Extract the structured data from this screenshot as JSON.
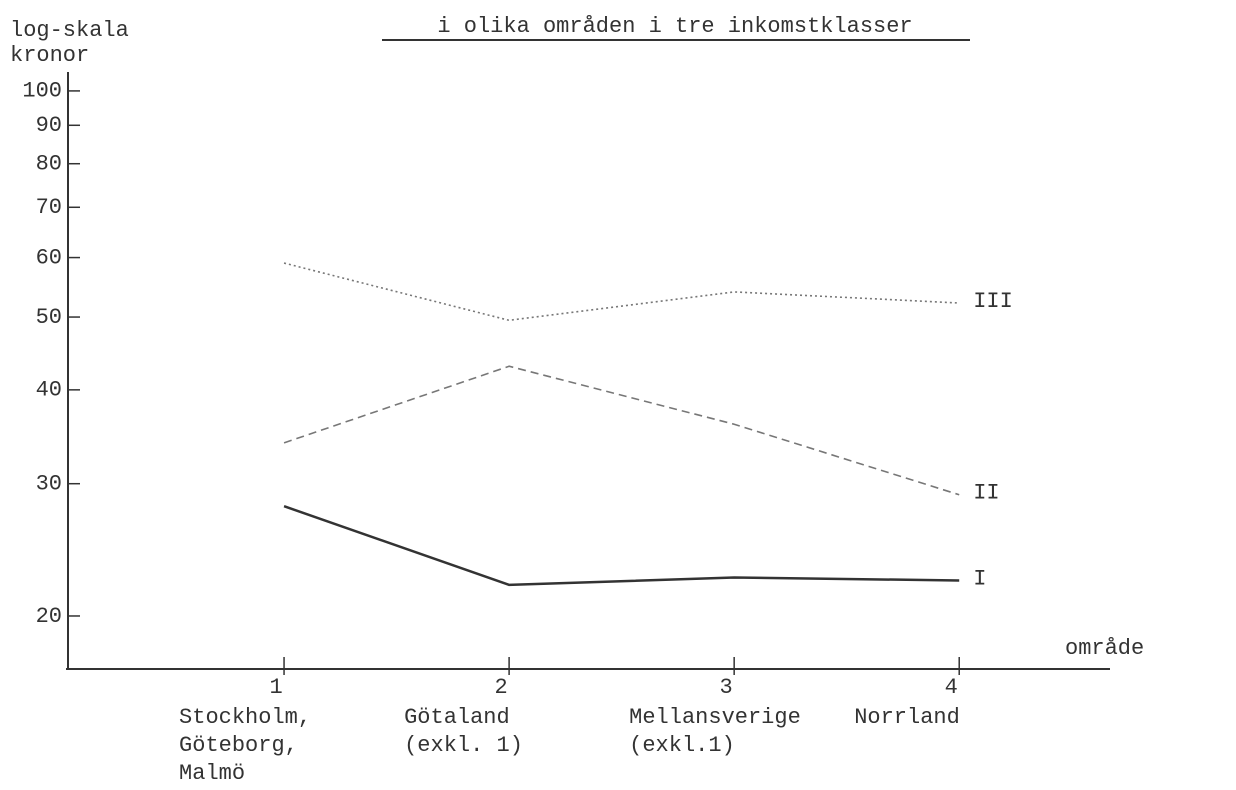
{
  "chart_data": {
    "type": "line",
    "title": "i olika områden i tre inkomstklasser",
    "y_label_lines": [
      "log-skala",
      "kronor"
    ],
    "x_label": "område",
    "x": [
      1,
      2,
      3,
      4
    ],
    "xlim": [
      0.04,
      4.67
    ],
    "xticks": [
      1,
      2,
      3,
      4
    ],
    "region_labels": [
      [
        "Stockholm,",
        "Göteborg,",
        "Malmö"
      ],
      [
        "Götaland",
        "(exkl. 1)"
      ],
      [
        "Mellansverige",
        "(exkl.1)"
      ],
      [
        "Norrland"
      ]
    ],
    "ylim": [
      17,
      105
    ],
    "yticks": [
      20,
      30,
      40,
      50,
      60,
      70,
      80,
      90,
      100
    ],
    "log_y": true,
    "series": [
      {
        "name": "I",
        "color": "#333333",
        "dash": "solid",
        "values": [
          28,
          22,
          22.5,
          22.3
        ]
      },
      {
        "name": "II",
        "color": "#777777",
        "dash": "dashed",
        "values": [
          34,
          43,
          36,
          29
        ]
      },
      {
        "name": "III",
        "color": "#777777",
        "dash": "dotted",
        "values": [
          59,
          49.5,
          54,
          52.2
        ]
      }
    ]
  }
}
